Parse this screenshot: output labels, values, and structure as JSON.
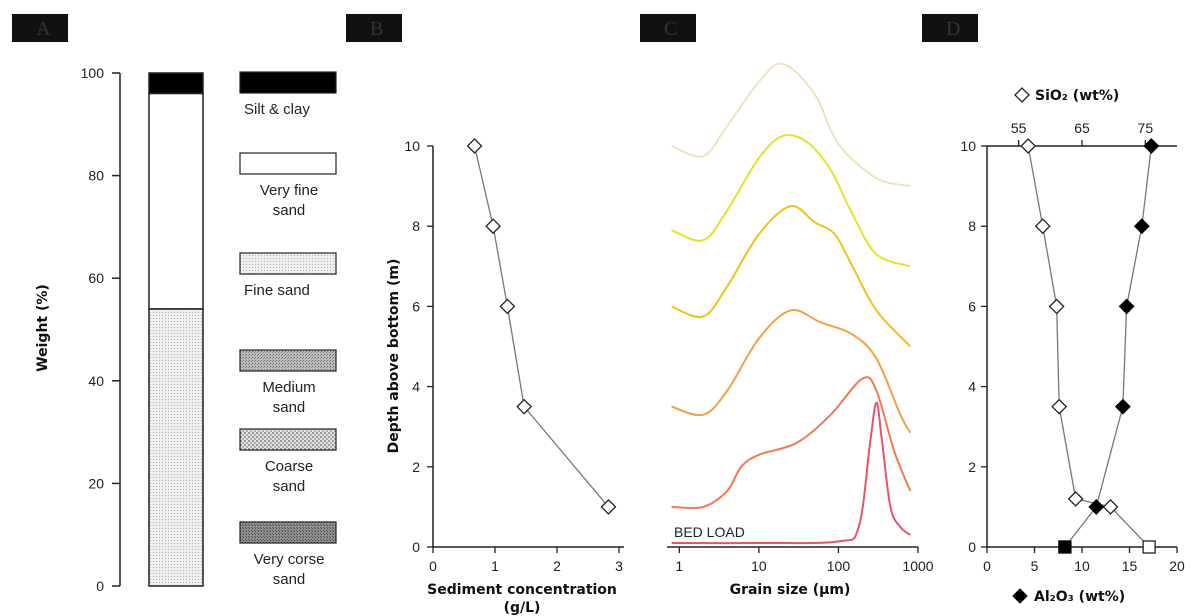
{
  "panels": [
    "A",
    "B",
    "C",
    "D"
  ],
  "colors": {
    "stroke": "#222222",
    "gray_line": "#777777",
    "black_fill": "#000000",
    "open_marker": "#ffffff",
    "curves": [
      "#f1e2c0",
      "#e2e42a",
      "#f0c21c",
      "#f2a046",
      "#f07a52",
      "#e4556a",
      "#000000"
    ]
  },
  "chart_data": [
    {
      "panel": "A",
      "type": "bar",
      "stacked": true,
      "ylabel": "Weight (%)",
      "ylim": [
        0,
        100
      ],
      "yticks": [
        "0",
        "20",
        "40",
        "60",
        "80",
        "100"
      ],
      "series": [
        {
          "name": "Silt & clay",
          "value": 4,
          "pattern": "black"
        },
        {
          "name": "Very fine sand",
          "value": 42,
          "pattern": "white"
        },
        {
          "name": "Fine sand",
          "value": 54,
          "pattern": "light-stipple"
        }
      ],
      "legend": [
        {
          "label_lines": [
            "Silt & clay"
          ],
          "pattern": "black"
        },
        {
          "label_lines": [
            "Very fine",
            "sand"
          ],
          "pattern": "white"
        },
        {
          "label_lines": [
            "Fine sand"
          ],
          "pattern": "light-stipple"
        },
        {
          "label_lines": [
            "Medium",
            "sand"
          ],
          "pattern": "medium-stipple"
        },
        {
          "label_lines": [
            "Coarse",
            "sand"
          ],
          "pattern": "coarse-stipple"
        },
        {
          "label_lines": [
            "Very corse",
            "sand"
          ],
          "pattern": "dark-stipple"
        }
      ]
    },
    {
      "panel": "B",
      "type": "line",
      "ylabel": "Depth above bottom (m)",
      "xlabel_lines": [
        "Sediment concentration",
        "(g/L)"
      ],
      "xlim": [
        0,
        3
      ],
      "ylim": [
        0,
        10
      ],
      "xticks": [
        "0",
        "1",
        "2",
        "3"
      ],
      "yticks": [
        "0",
        "2",
        "4",
        "6",
        "8",
        "10"
      ],
      "series": [
        {
          "x": [
            0.67,
            0.97,
            1.2,
            1.47,
            2.83
          ],
          "y": [
            10,
            8,
            6,
            3.5,
            1
          ],
          "marker": "open-diamond"
        }
      ]
    },
    {
      "panel": "C",
      "type": "line",
      "xlabel": "Grain size (μm)",
      "xscale": "log",
      "xlim": [
        0.7,
        1000
      ],
      "xticks": [
        "1",
        "10",
        "100",
        "1000"
      ],
      "annotation": "BED LOAD",
      "series": [
        {
          "depth_m": 10,
          "x": [
            0.8,
            2,
            4,
            10,
            20,
            50,
            100,
            300,
            800
          ],
          "y": [
            10.0,
            9.75,
            10.5,
            11.6,
            12.05,
            11.3,
            10.05,
            9.2,
            9.0
          ]
        },
        {
          "depth_m": 8,
          "x": [
            0.8,
            2,
            4,
            10,
            20,
            40,
            80,
            150,
            300,
            800
          ],
          "y": [
            7.9,
            7.65,
            8.4,
            9.7,
            10.25,
            10.1,
            9.4,
            8.3,
            7.3,
            7.0
          ]
        },
        {
          "depth_m": 6,
          "x": [
            0.8,
            2,
            4,
            10,
            25,
            50,
            90,
            150,
            300,
            800
          ],
          "y": [
            6.0,
            5.75,
            6.5,
            7.8,
            8.5,
            8.1,
            7.8,
            7.0,
            5.9,
            5.0
          ]
        },
        {
          "depth_m": 3.5,
          "x": [
            0.8,
            2,
            4,
            10,
            25,
            60,
            150,
            300,
            600,
            800
          ],
          "y": [
            3.5,
            3.3,
            3.9,
            5.2,
            5.9,
            5.6,
            5.3,
            4.7,
            3.3,
            2.85
          ]
        },
        {
          "depth_m": 1,
          "x": [
            0.8,
            2,
            4,
            6,
            10,
            30,
            80,
            200,
            300,
            500,
            800
          ],
          "y": [
            1.0,
            1.0,
            1.4,
            2.0,
            2.3,
            2.6,
            3.3,
            4.2,
            3.9,
            2.4,
            1.4
          ]
        },
        {
          "depth_m": 0,
          "label": "BED LOAD",
          "x": [
            0.8,
            10,
            100,
            180,
            250,
            300,
            350,
            450,
            600,
            800
          ],
          "y": [
            0.1,
            0.1,
            0.14,
            0.5,
            2.6,
            3.6,
            2.7,
            1.0,
            0.5,
            0.3
          ]
        }
      ]
    },
    {
      "panel": "D",
      "type": "line",
      "xlabel": "Al₂O₃ (wt%)",
      "x2label": "SiO₂ (wt%)",
      "xlim": [
        0,
        20
      ],
      "x2lim": [
        50,
        80
      ],
      "ylim": [
        0,
        10
      ],
      "xticks": [
        "0",
        "5",
        "10",
        "15",
        "20"
      ],
      "x2ticks": [
        "55",
        "65",
        "75"
      ],
      "yticks": [
        "0",
        "2",
        "4",
        "6",
        "8",
        "10"
      ],
      "series": [
        {
          "name": "SiO₂ (wt%)",
          "axis": "top",
          "marker": "open-diamond",
          "x": [
            56.5,
            58.8,
            61.0,
            61.4,
            64.0,
            69.5,
            75.6
          ],
          "y": [
            10,
            8,
            6,
            3.5,
            1.2,
            1,
            0
          ]
        },
        {
          "name": "Al₂O₃ (wt%)",
          "axis": "bottom",
          "marker": "filled-diamond",
          "x": [
            17.3,
            16.3,
            14.7,
            14.3,
            11.5,
            8.2
          ],
          "y": [
            10,
            8,
            6,
            3.5,
            1,
            0
          ]
        }
      ]
    }
  ]
}
